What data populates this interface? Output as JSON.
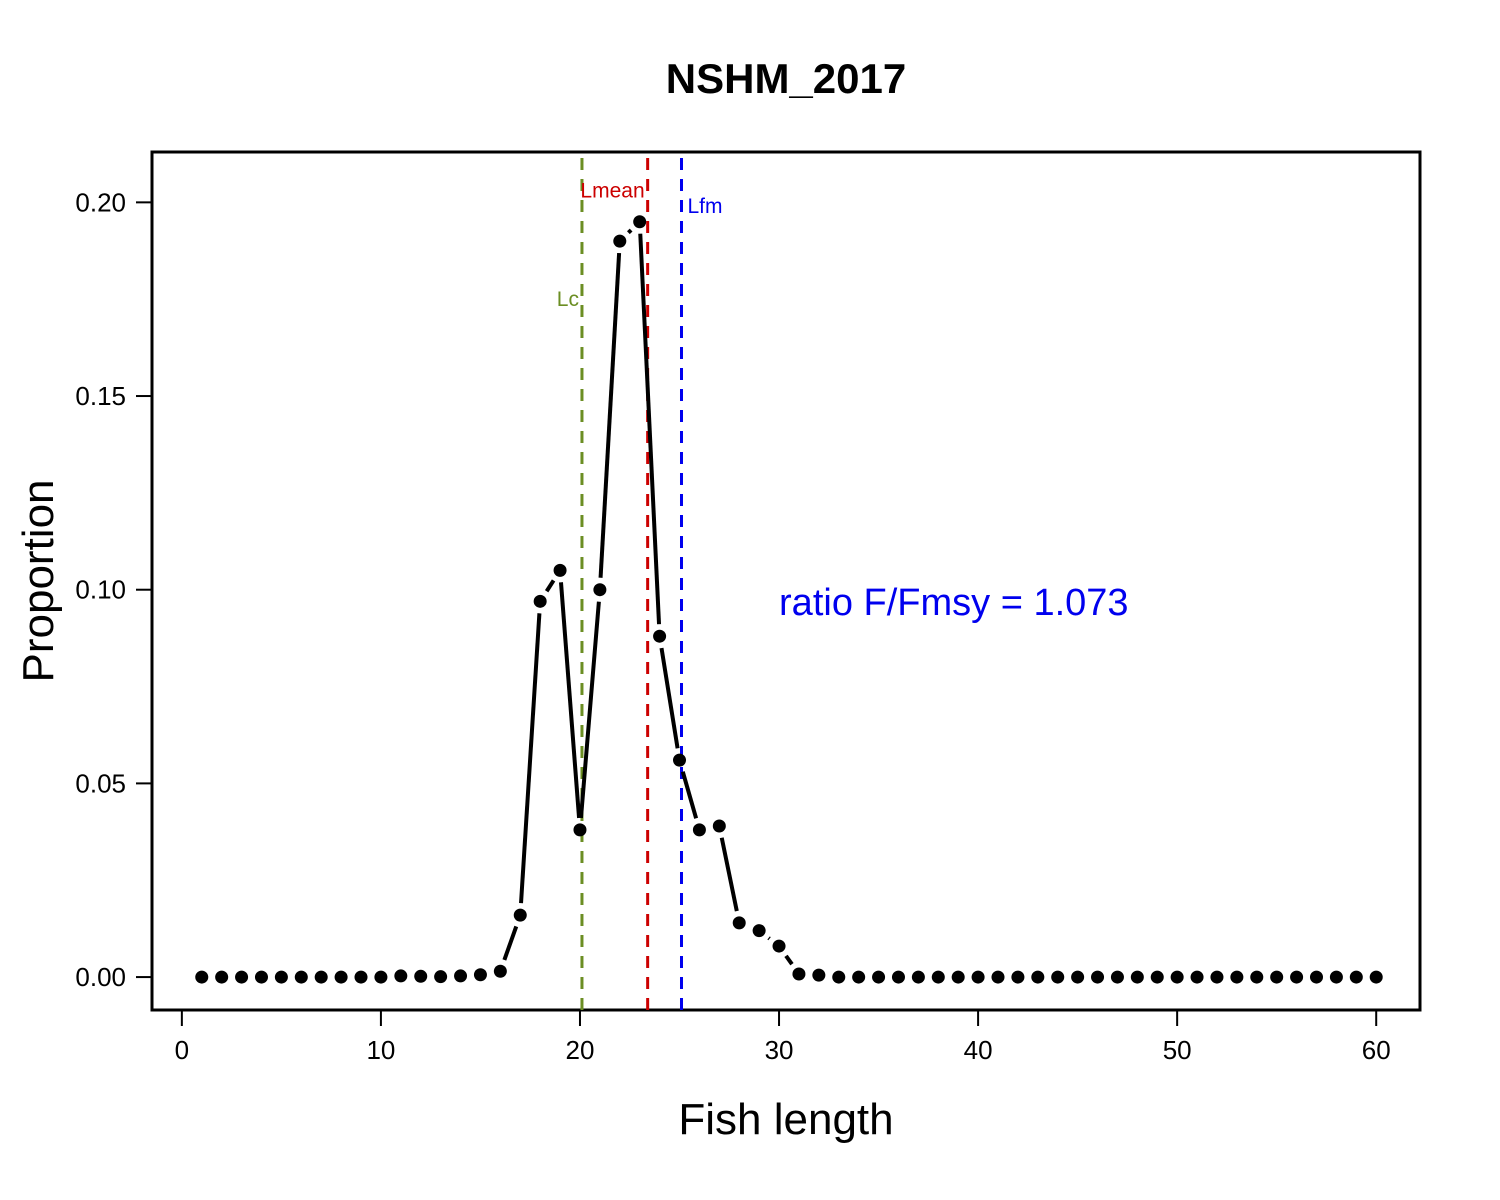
{
  "chart_data": {
    "type": "line",
    "title": "NSHM_2017",
    "xlabel": "Fish length",
    "ylabel": "Proportion",
    "xlim": [
      -1.5,
      62.2
    ],
    "ylim": [
      -0.0085,
      0.213
    ],
    "xticks": [
      0,
      10,
      20,
      30,
      40,
      50,
      60
    ],
    "yticks": [
      0.0,
      0.05,
      0.1,
      0.15,
      0.2
    ],
    "ytick_labels": [
      "0.00",
      "0.05",
      "0.10",
      "0.15",
      "0.20"
    ],
    "grid": false,
    "legend": "none",
    "series": [
      {
        "color": "#000000",
        "style": "line with points",
        "x": [
          1,
          2,
          3,
          4,
          5,
          6,
          7,
          8,
          9,
          10,
          11,
          12,
          13,
          14,
          15,
          16,
          17,
          18,
          19,
          20,
          21,
          22,
          23,
          24,
          25,
          26,
          27,
          28,
          29,
          30,
          31,
          32,
          33,
          34,
          35,
          36,
          37,
          38,
          39,
          40,
          41,
          42,
          43,
          44,
          45,
          46,
          47,
          48,
          49,
          50,
          51,
          52,
          53,
          54,
          55,
          56,
          57,
          58,
          59,
          60
        ],
        "y": [
          0,
          0,
          0,
          0,
          0,
          0,
          0,
          0,
          0,
          0,
          0.0003,
          0.0002,
          0.0001,
          0.0003,
          0.0006,
          0.0015,
          0.016,
          0.097,
          0.105,
          0.038,
          0.1,
          0.19,
          0.195,
          0.088,
          0.056,
          0.038,
          0.039,
          0.014,
          0.012,
          0.008,
          0.0008,
          0.0005,
          0,
          0,
          0,
          0,
          0,
          0,
          0,
          0,
          0,
          0,
          0,
          0,
          0,
          0,
          0,
          0,
          0,
          0,
          0,
          0,
          0,
          0,
          0,
          0,
          0,
          0,
          0,
          0
        ]
      }
    ],
    "reference_lines": [
      {
        "label": "Lc",
        "x": 20.1,
        "color": "#6b8e23",
        "label_y": 0.175
      },
      {
        "label": "Lmean",
        "x": 23.4,
        "color": "#cc0000",
        "label_y": 0.203
      },
      {
        "label": "Lfm",
        "x": 25.1,
        "color": "#0000ee",
        "label_y": 0.199
      }
    ],
    "annotation": {
      "text": "ratio F/Fmsy = 1.073",
      "x": 30,
      "y": 0.0935,
      "color": "#0000ee"
    }
  }
}
